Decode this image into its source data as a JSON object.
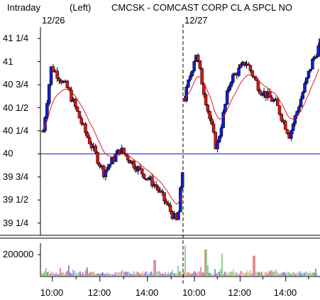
{
  "header": {
    "mode": "Intraday",
    "axis_side": "(Left)",
    "ticker_title": "CMCSK - COMCAST CORP CL A SPCL NO"
  },
  "colors": {
    "up_candle": "#1020c8",
    "down_candle": "#d01818",
    "moving_average": "#e02020",
    "reference_line": "#1020b0",
    "axis": "#000000"
  },
  "chart_data": {
    "type": "candlestick",
    "title": "CMCSK - COMCAST CORP CL A SPCL NO",
    "date_labels": [
      {
        "label": "12/26",
        "time": 9.5
      },
      {
        "label": "12/27",
        "time": 25.5
      }
    ],
    "ylim": [
      39.125,
      41.375
    ],
    "y_ticks": [
      {
        "label": "41 1/4",
        "value": 41.25
      },
      {
        "label": "41",
        "value": 41.0
      },
      {
        "label": "40 3/4",
        "value": 40.75
      },
      {
        "label": "40 1/2",
        "value": 40.5
      },
      {
        "label": "40 1/4",
        "value": 40.25
      },
      {
        "label": "40",
        "value": 40.0
      },
      {
        "label": "39 3/4",
        "value": 39.75
      },
      {
        "label": "39 1/2",
        "value": 39.5
      },
      {
        "label": "39 1/4",
        "value": 39.25
      }
    ],
    "reference_line": 40.0,
    "session_divider_time": 25.5,
    "x_ticks": [
      {
        "label": "10:00",
        "time": 10
      },
      {
        "label": "12:00",
        "time": 12
      },
      {
        "label": "14:00",
        "time": 14
      },
      {
        "label": "10:00",
        "time": 26
      },
      {
        "label": "12:00",
        "time": 28
      },
      {
        "label": "14:00",
        "time": 30
      }
    ],
    "session_key_prices": [
      {
        "time": 9.55,
        "price": 40.25
      },
      {
        "time": 9.9,
        "price": 40.95
      },
      {
        "time": 10.6,
        "price": 40.7
      },
      {
        "time": 11.3,
        "price": 40.25
      },
      {
        "time": 12.1,
        "price": 39.8
      },
      {
        "time": 12.8,
        "price": 40.05
      },
      {
        "time": 13.5,
        "price": 39.85
      },
      {
        "time": 14.3,
        "price": 39.65
      },
      {
        "time": 15.2,
        "price": 39.25
      },
      {
        "time": 15.45,
        "price": 39.9
      },
      {
        "time": 25.5,
        "price": 40.6
      },
      {
        "time": 26.0,
        "price": 41.1
      },
      {
        "time": 26.5,
        "price": 40.5
      },
      {
        "time": 26.9,
        "price": 40.05
      },
      {
        "time": 27.5,
        "price": 40.8
      },
      {
        "time": 28.2,
        "price": 41.0
      },
      {
        "time": 28.8,
        "price": 40.7
      },
      {
        "time": 29.5,
        "price": 40.55
      },
      {
        "time": 30.1,
        "price": 40.2
      },
      {
        "time": 30.6,
        "price": 40.6
      },
      {
        "time": 31.1,
        "price": 41.0
      },
      {
        "time": 31.45,
        "price": 41.2
      }
    ],
    "volume": {
      "ylim": [
        0,
        310000
      ],
      "y_tick": {
        "label": "200000",
        "value": 200000
      },
      "spikes": [
        {
          "time": 25.6,
          "value": 290000
        },
        {
          "time": 26.5,
          "value": 250000
        },
        {
          "time": 27.2,
          "value": 210000
        },
        {
          "time": 28.6,
          "value": 190000
        },
        {
          "time": 14.3,
          "value": 150000
        }
      ]
    }
  }
}
